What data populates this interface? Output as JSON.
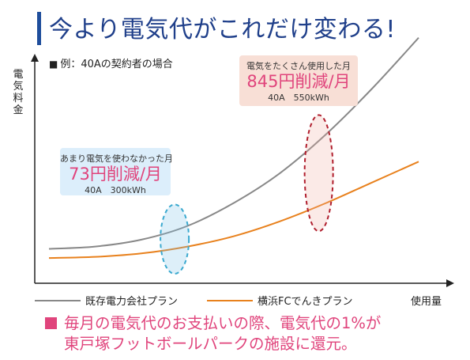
{
  "title": "今より電気代がこれだけ変わる!",
  "example_label": "例：40Aの契約者の場合",
  "chart_data": {
    "type": "line",
    "ylabel": "電気料金",
    "xlabel": "使用量",
    "x": [
      0,
      0.125,
      0.25,
      0.375,
      0.5,
      0.625,
      0.75,
      0.875,
      1.0
    ],
    "series": [
      {
        "name": "既存電力会社プラン",
        "color": "#888888",
        "values": [
          0.15,
          0.16,
          0.19,
          0.25,
          0.35,
          0.48,
          0.65,
          0.85,
          1.07
        ]
      },
      {
        "name": "横浜FCでんきプラン",
        "color": "#e8811d",
        "values": [
          0.11,
          0.115,
          0.13,
          0.16,
          0.205,
          0.27,
          0.35,
          0.44,
          0.53
        ]
      }
    ],
    "annotations": [
      {
        "caption": "あまり電気を使わなかった月",
        "amount": "73円削減/月",
        "detail": "40A　300kWh",
        "x": 0.34,
        "ellipse_color": "#3aa9cf"
      },
      {
        "caption": "電気をたくさん使用した月",
        "amount": "845円削減/月",
        "detail": "40A　550kWh",
        "x": 0.73,
        "ellipse_color": "#b01e2d"
      }
    ]
  },
  "footer": {
    "line1": "毎月の電気代のお支払いの際、電気代の1%が",
    "line2": "東戸塚フットボールパークの施設に還元。",
    "accent": "#e0447c"
  }
}
